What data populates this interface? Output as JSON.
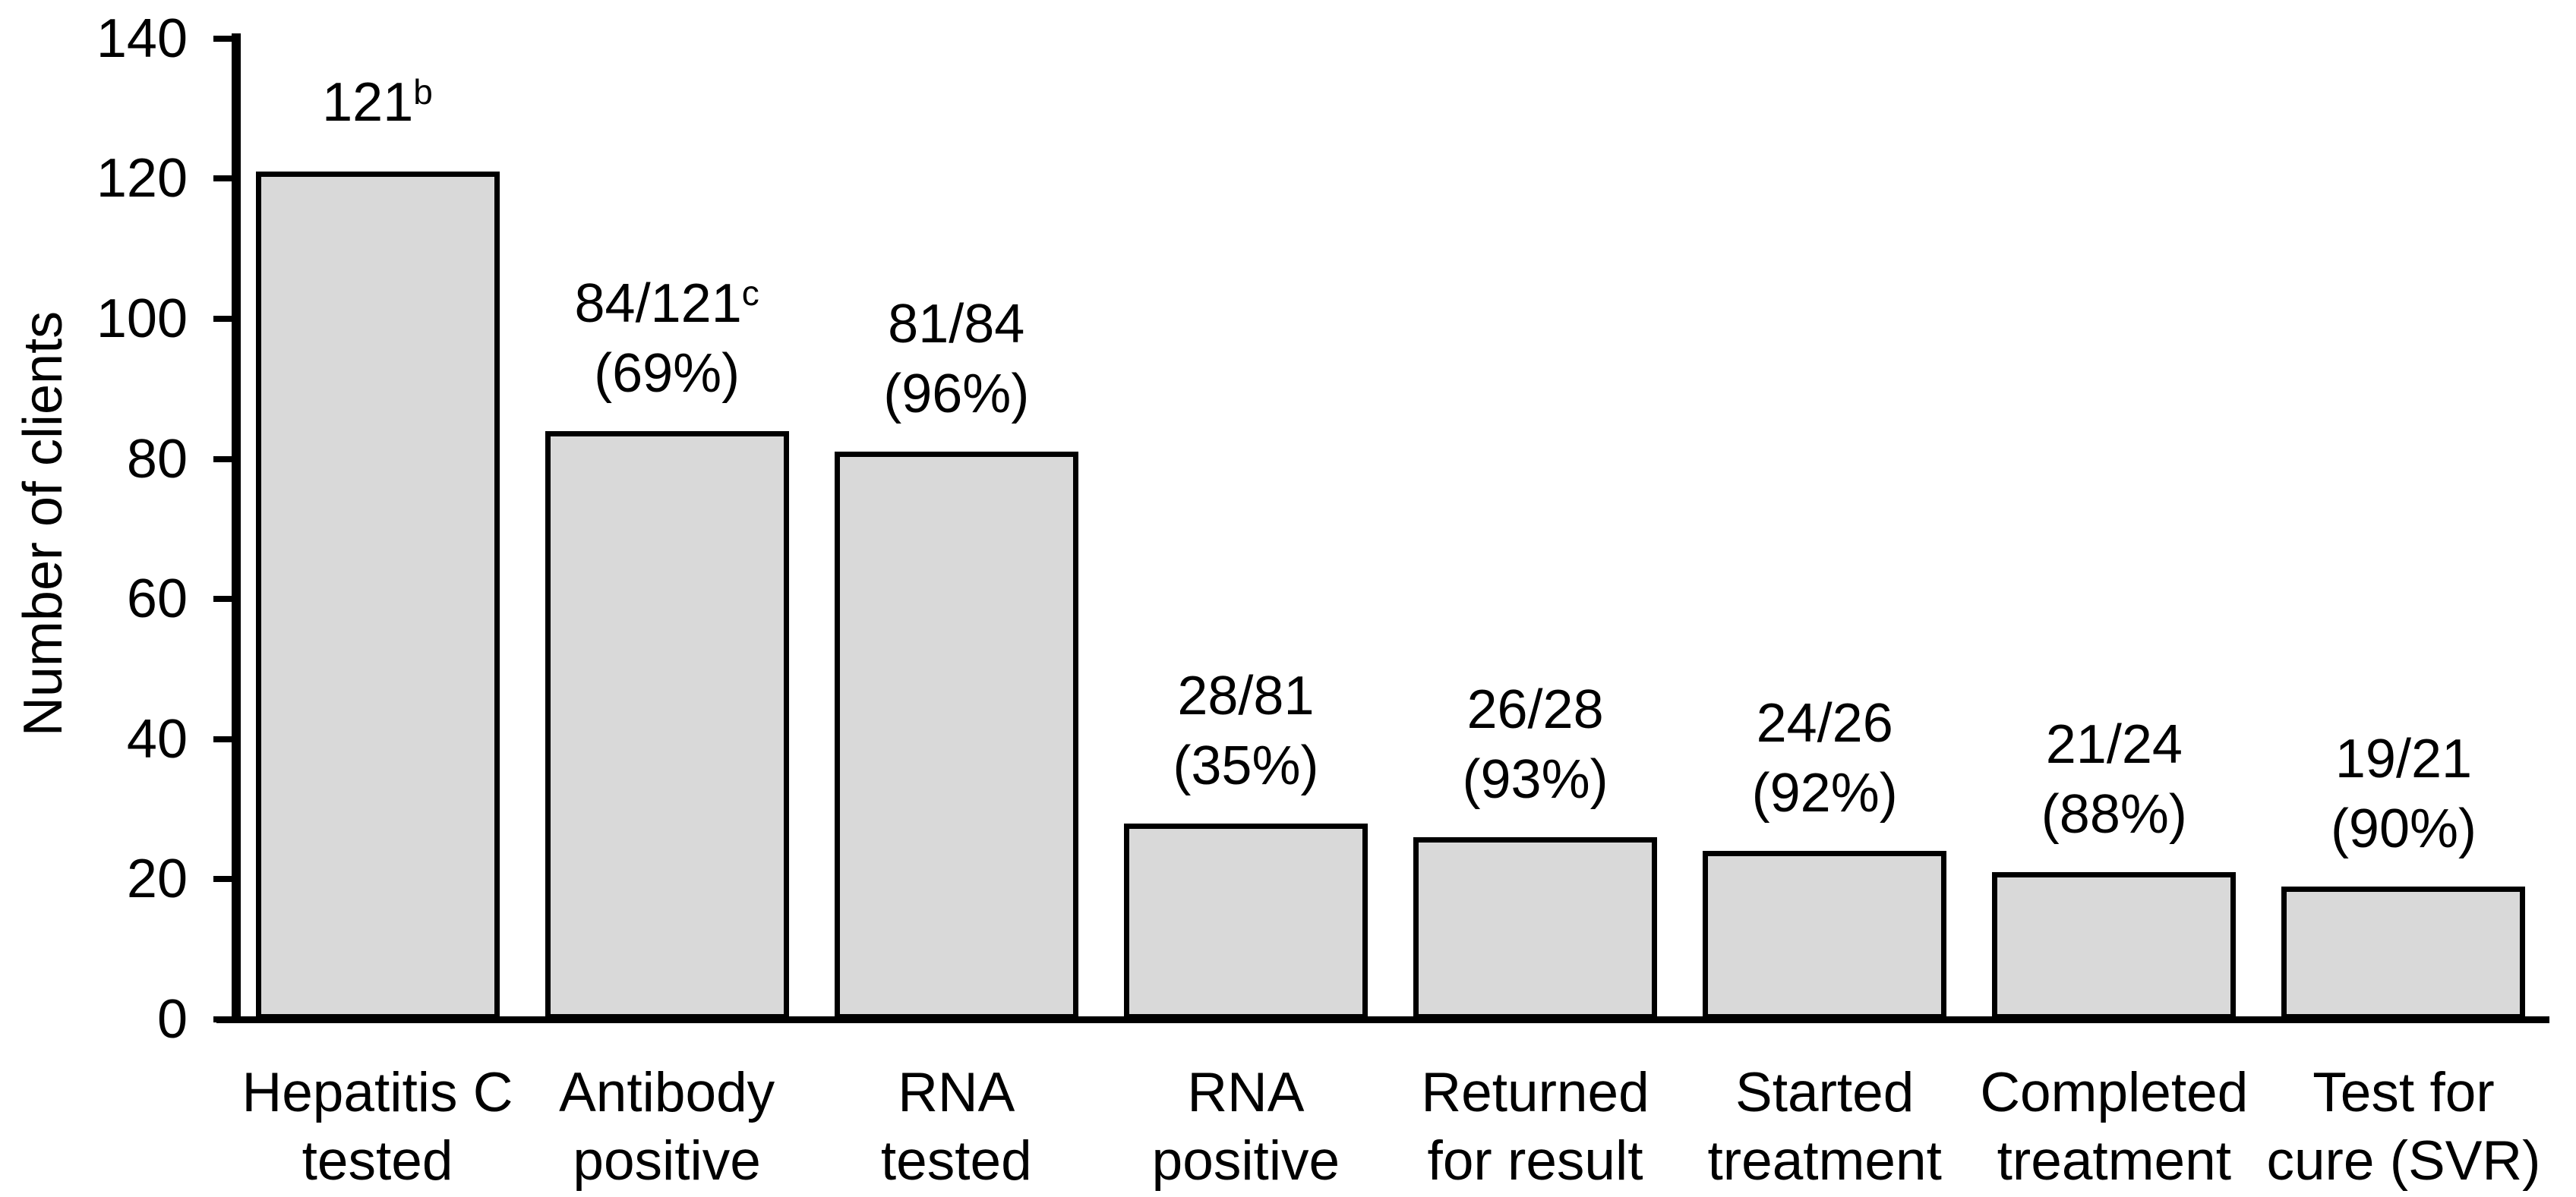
{
  "chart_data": {
    "type": "bar",
    "title": "",
    "xlabel": "",
    "ylabel": "Number of clients",
    "ylim": [
      0,
      140
    ],
    "yticks": [
      0,
      20,
      40,
      60,
      80,
      100,
      120,
      140
    ],
    "grid": false,
    "legend": "none",
    "bar_fill_color": "#d9d9d9",
    "bar_border_color": "#000000",
    "text_color": "#000000",
    "background_color": "#ffffff",
    "categories": [
      [
        "Hepatitis C",
        "tested"
      ],
      [
        "Antibody",
        "positive"
      ],
      [
        "RNA",
        "tested"
      ],
      [
        "RNA",
        "positive"
      ],
      [
        "Returned",
        "for result"
      ],
      [
        "Started",
        "treatment"
      ],
      [
        "Completed",
        "treatment"
      ],
      [
        "Test for",
        "cure (SVR)"
      ]
    ],
    "values": [
      121,
      84,
      81,
      28,
      26,
      24,
      21,
      19
    ],
    "bar_labels": [
      {
        "line1": "121",
        "sup": "b",
        "line2": ""
      },
      {
        "line1": "84/121",
        "sup": "c",
        "line2": "(69%)"
      },
      {
        "line1": "81/84",
        "sup": "",
        "line2": "(96%)"
      },
      {
        "line1": "28/81",
        "sup": "",
        "line2": "(35%)"
      },
      {
        "line1": "26/28",
        "sup": "",
        "line2": "(93%)"
      },
      {
        "line1": "24/26",
        "sup": "",
        "line2": "(92%)"
      },
      {
        "line1": "21/24",
        "sup": "",
        "line2": "(88%)"
      },
      {
        "line1": "19/21",
        "sup": "",
        "line2": "(90%)"
      }
    ]
  }
}
